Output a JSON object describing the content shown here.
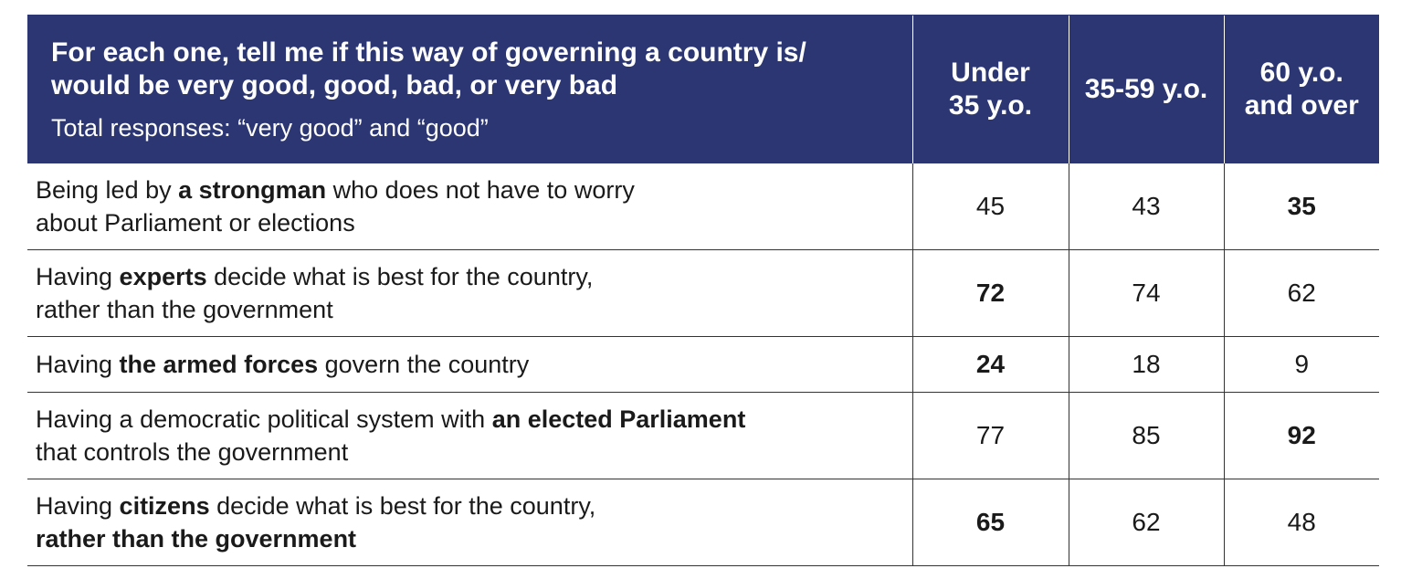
{
  "chart_data": {
    "type": "table",
    "title": "For each one, tell me if this way of governing a country is/ would be very good, good, bad, or very bad",
    "subtitle": "Total responses: “very good” and “good”",
    "columns": [
      "Under 35 y.o.",
      "35-59 y.o.",
      "60 y.o. and over"
    ],
    "column_lines": [
      [
        "Under",
        "35 y.o."
      ],
      [
        "35-59 y.o."
      ],
      [
        "60 y.o.",
        "and over"
      ]
    ],
    "rows": [
      {
        "label_parts": [
          {
            "text": "Being led by ",
            "bold": false
          },
          {
            "text": "a strongman",
            "bold": true
          },
          {
            "text": " who does not have to worry",
            "bold": false
          },
          {
            "text": "\n",
            "bold": false
          },
          {
            "text": "about Parliament or elections",
            "bold": false
          }
        ],
        "values": [
          45,
          43,
          35
        ],
        "bold_values": [
          false,
          false,
          true
        ]
      },
      {
        "label_parts": [
          {
            "text": "Having ",
            "bold": false
          },
          {
            "text": "experts",
            "bold": true
          },
          {
            "text": " decide what is best for the country,",
            "bold": false
          },
          {
            "text": "\n",
            "bold": false
          },
          {
            "text": "rather than the government",
            "bold": false
          }
        ],
        "values": [
          72,
          74,
          62
        ],
        "bold_values": [
          true,
          false,
          false
        ]
      },
      {
        "label_parts": [
          {
            "text": "Having ",
            "bold": false
          },
          {
            "text": "the armed forces",
            "bold": true
          },
          {
            "text": " govern the country",
            "bold": false
          }
        ],
        "values": [
          24,
          18,
          9
        ],
        "bold_values": [
          true,
          false,
          false
        ]
      },
      {
        "label_parts": [
          {
            "text": "Having a democratic political system with ",
            "bold": false
          },
          {
            "text": "an elected Parliament",
            "bold": true
          },
          {
            "text": "\n",
            "bold": false
          },
          {
            "text": "that controls the government",
            "bold": false
          }
        ],
        "values": [
          77,
          85,
          92
        ],
        "bold_values": [
          false,
          false,
          true
        ]
      },
      {
        "label_parts": [
          {
            "text": "Having ",
            "bold": false
          },
          {
            "text": "citizens",
            "bold": true
          },
          {
            "text": " decide what is best for the country,",
            "bold": false
          },
          {
            "text": "\n",
            "bold": false
          },
          {
            "text": "rather than the government",
            "bold": true
          }
        ],
        "values": [
          65,
          62,
          48
        ],
        "bold_values": [
          true,
          false,
          false
        ]
      }
    ]
  },
  "colors": {
    "header_bg": "#2b3673",
    "header_text": "#ffffff",
    "body_text": "#1a1a1a",
    "rule": "#333333"
  }
}
